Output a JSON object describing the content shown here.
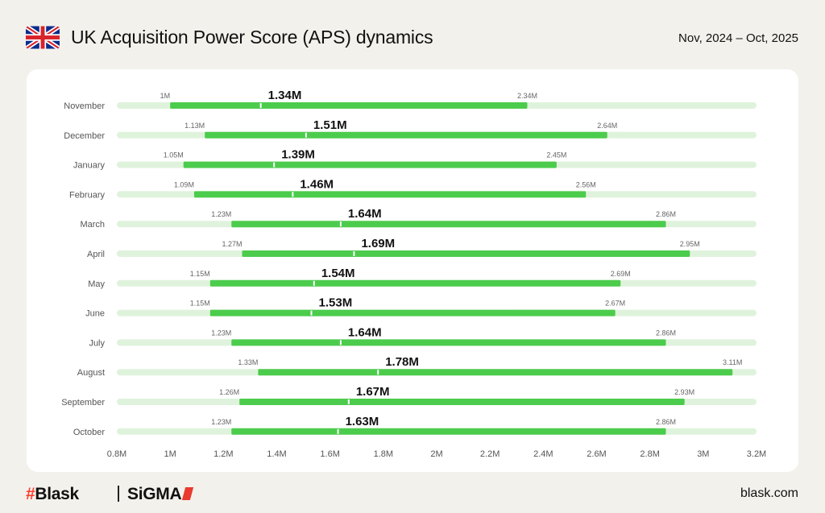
{
  "header": {
    "title": "UK Acquisition Power Score (APS) dynamics",
    "period": "Nov, 2024 – Oct, 2025",
    "flag_icon": "uk-flag-icon"
  },
  "footer": {
    "brand_left": "Blask",
    "brand_left_prefix": "#",
    "brand_right": "SiGMA",
    "website": "blask.com"
  },
  "colors": {
    "background": "#f3f1ec",
    "range_bar": "#4ccc4c",
    "track": "#dff3dc",
    "median_tick": "#ffffff",
    "brand_red": "#ff3d2e"
  },
  "chart_data": {
    "type": "range-bar",
    "title": "UK Acquisition Power Score (APS) dynamics",
    "xlim": [
      0.8,
      3.2
    ],
    "xticks": [
      "0.8M",
      "1M",
      "1.2M",
      "1.4M",
      "1.6M",
      "1.8M",
      "2M",
      "2.2M",
      "2.4M",
      "2.6M",
      "2.8M",
      "3M",
      "3.2M"
    ],
    "xtick_values": [
      0.8,
      1.0,
      1.2,
      1.4,
      1.6,
      1.8,
      2.0,
      2.2,
      2.4,
      2.6,
      2.8,
      3.0,
      3.2
    ],
    "unit": "M",
    "rows": [
      {
        "month": "November",
        "min": 1.0,
        "value": 1.34,
        "max": 2.34,
        "min_label": "1M",
        "value_label": "1.34M",
        "max_label": "2.34M"
      },
      {
        "month": "December",
        "min": 1.13,
        "value": 1.51,
        "max": 2.64,
        "min_label": "1.13M",
        "value_label": "1.51M",
        "max_label": "2.64M"
      },
      {
        "month": "January",
        "min": 1.05,
        "value": 1.39,
        "max": 2.45,
        "min_label": "1.05M",
        "value_label": "1.39M",
        "max_label": "2.45M"
      },
      {
        "month": "February",
        "min": 1.09,
        "value": 1.46,
        "max": 2.56,
        "min_label": "1.09M",
        "value_label": "1.46M",
        "max_label": "2.56M"
      },
      {
        "month": "March",
        "min": 1.23,
        "value": 1.64,
        "max": 2.86,
        "min_label": "1.23M",
        "value_label": "1.64M",
        "max_label": "2.86M"
      },
      {
        "month": "April",
        "min": 1.27,
        "value": 1.69,
        "max": 2.95,
        "min_label": "1.27M",
        "value_label": "1.69M",
        "max_label": "2.95M"
      },
      {
        "month": "May",
        "min": 1.15,
        "value": 1.54,
        "max": 2.69,
        "min_label": "1.15M",
        "value_label": "1.54M",
        "max_label": "2.69M"
      },
      {
        "month": "June",
        "min": 1.15,
        "value": 1.53,
        "max": 2.67,
        "min_label": "1.15M",
        "value_label": "1.53M",
        "max_label": "2.67M"
      },
      {
        "month": "July",
        "min": 1.23,
        "value": 1.64,
        "max": 2.86,
        "min_label": "1.23M",
        "value_label": "1.64M",
        "max_label": "2.86M"
      },
      {
        "month": "August",
        "min": 1.33,
        "value": 1.78,
        "max": 3.11,
        "min_label": "1.33M",
        "value_label": "1.78M",
        "max_label": "3.11M"
      },
      {
        "month": "September",
        "min": 1.26,
        "value": 1.67,
        "max": 2.93,
        "min_label": "1.26M",
        "value_label": "1.67M",
        "max_label": "2.93M"
      },
      {
        "month": "October",
        "min": 1.23,
        "value": 1.63,
        "max": 2.86,
        "min_label": "1.23M",
        "value_label": "1.63M",
        "max_label": "2.86M"
      }
    ]
  }
}
